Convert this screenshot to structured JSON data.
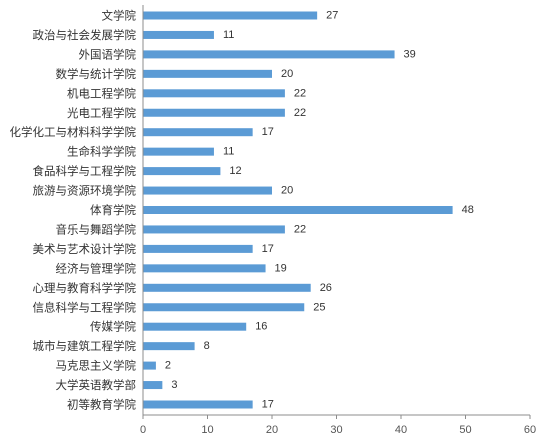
{
  "chart_data": {
    "type": "bar",
    "orientation": "horizontal",
    "title": "",
    "xlabel": "",
    "ylabel": "",
    "xlim": [
      0,
      60
    ],
    "xticks": [
      0,
      10,
      20,
      30,
      40,
      50,
      60
    ],
    "grid": false,
    "legend": "none",
    "bar_color": "#5b9bd5",
    "categories": [
      "文学院",
      "政治与社会发展学院",
      "外国语学院",
      "数学与统计学院",
      "机电工程学院",
      "光电工程学院",
      "化学化工与材料科学学院",
      "生命科学学院",
      "食品科学与工程学院",
      "旅游与资源环境学院",
      "体育学院",
      "音乐与舞蹈学院",
      "美术与艺术设计学院",
      "经济与管理学院",
      "心理与教育科学学院",
      "信息科学与工程学院",
      "传媒学院",
      "城市与建筑工程学院",
      "马克思主义学院",
      "大学英语教学部",
      "初等教育学院"
    ],
    "values": [
      27,
      11,
      39,
      20,
      22,
      22,
      17,
      11,
      12,
      20,
      48,
      22,
      17,
      19,
      26,
      25,
      16,
      8,
      2,
      3,
      17
    ]
  }
}
